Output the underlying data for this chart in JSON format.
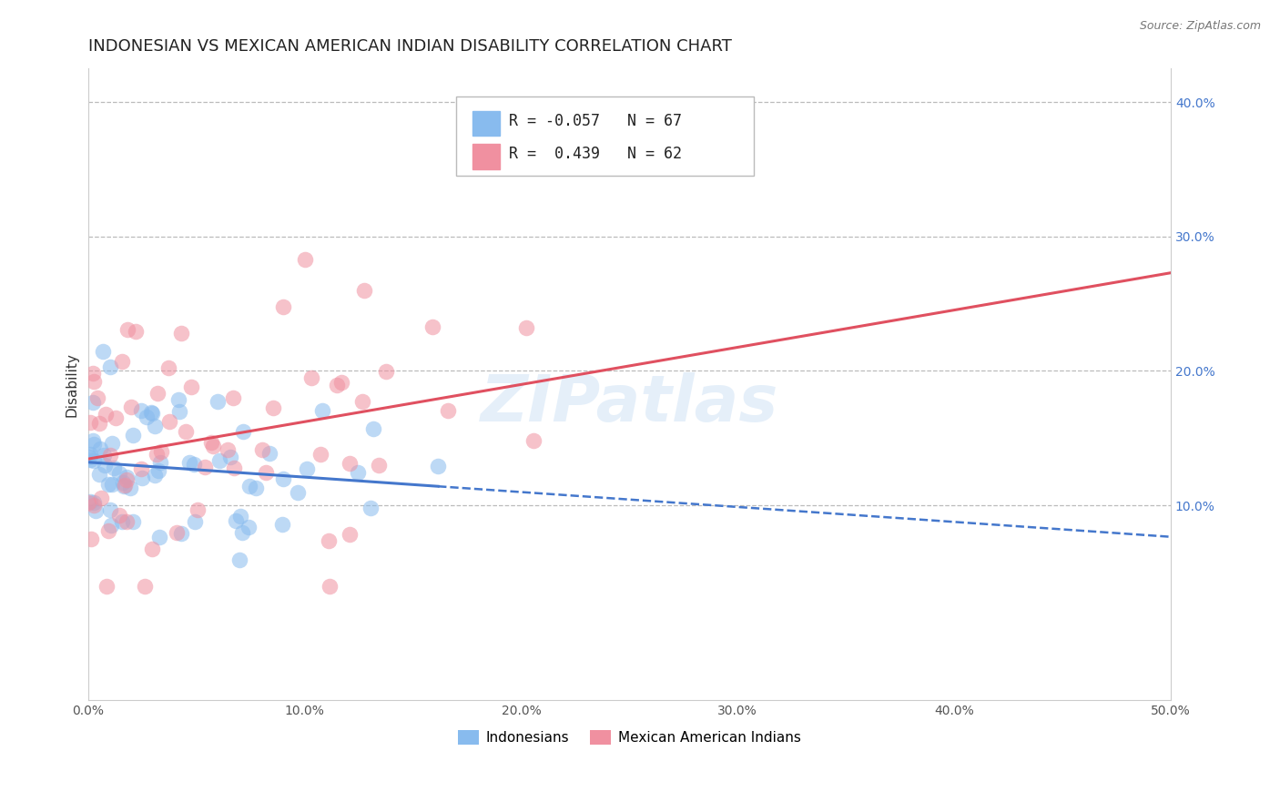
{
  "title": "INDONESIAN VS MEXICAN AMERICAN INDIAN DISABILITY CORRELATION CHART",
  "source": "Source: ZipAtlas.com",
  "xlabel_indonesian": "Indonesians",
  "xlabel_mexican": "Mexican American Indians",
  "ylabel": "Disability",
  "watermark": "ZIPatlas",
  "xlim": [
    0.0,
    0.5
  ],
  "ylim": [
    -0.045,
    0.425
  ],
  "ytick_labels": [
    "10.0%",
    "20.0%",
    "30.0%",
    "40.0%"
  ],
  "ytick_vals": [
    0.1,
    0.2,
    0.3,
    0.4
  ],
  "xtick_vals": [
    0.0,
    0.1,
    0.2,
    0.3,
    0.4,
    0.5
  ],
  "xtick_labels": [
    "0.0%",
    "10.0%",
    "20.0%",
    "30.0%",
    "40.0%",
    "50.0%"
  ],
  "R_indonesian": -0.057,
  "N_indonesian": 67,
  "R_mexican": 0.439,
  "N_mexican": 62,
  "color_indonesian": "#88BBEE",
  "color_mexican": "#F090A0",
  "line_color_indonesian": "#4477CC",
  "line_color_mexican": "#E05060",
  "background_color": "#FFFFFF",
  "grid_color": "#BBBBBB",
  "title_fontsize": 13,
  "axis_label_fontsize": 11,
  "tick_fontsize": 10,
  "watermark_fontsize": 52,
  "watermark_color": "#AACCEE",
  "watermark_alpha": 0.3,
  "seed": 12
}
